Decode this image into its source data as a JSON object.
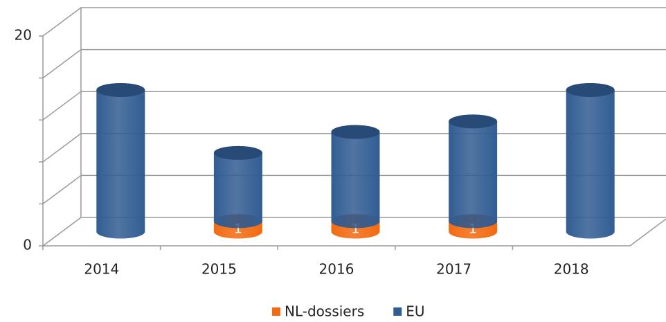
{
  "chart_data": {
    "type": "bar3d_stacked_cylinder",
    "categories": [
      "2014",
      "2015",
      "2016",
      "2017",
      "2018"
    ],
    "series": [
      {
        "name": "NL-dossiers",
        "color": "#f36a10",
        "values": [
          0,
          1,
          1,
          1,
          0
        ]
      },
      {
        "name": "EU",
        "color": "#325d93",
        "values": [
          13.5,
          6.5,
          8.5,
          9.5,
          13.5
        ]
      }
    ],
    "ylim": [
      0,
      20
    ],
    "yticks": [
      0,
      {
        "value": 4,
        "label": null
      },
      {
        "value": 8,
        "label": null
      },
      {
        "value": 12,
        "label": null
      },
      {
        "value": 16,
        "label": null
      },
      20
    ],
    "grid": true,
    "legend": "bottom"
  }
}
